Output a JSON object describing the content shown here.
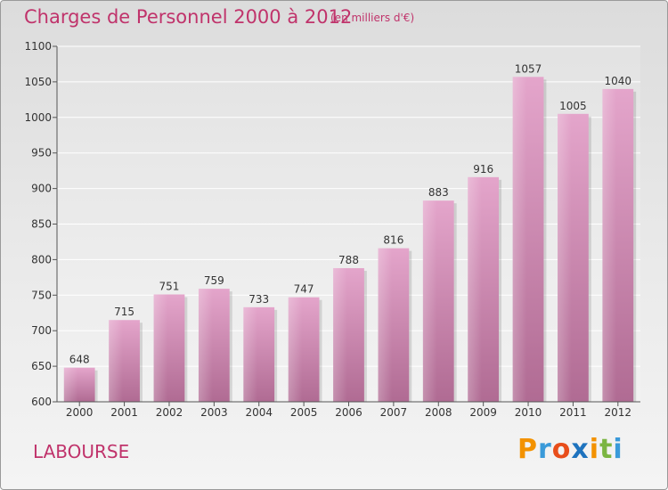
{
  "header": {
    "title": "Charges de Personnel 2000 à 2012",
    "subtitle": "(en milliers d'€)"
  },
  "footer": {
    "commune": "LABOURSE",
    "brand_letters": [
      "P",
      "r",
      "o",
      "x",
      "i",
      "t",
      "i"
    ],
    "brand_colors": [
      "#f39200",
      "#3a9ad9",
      "#e84e1b",
      "#1e73be",
      "#f39200",
      "#7bb542",
      "#3a9ad9"
    ]
  },
  "chart_data": {
    "type": "bar",
    "title": "Charges de Personnel 2000 à 2012",
    "subtitle": "(en milliers d'€)",
    "categories": [
      "2000",
      "2001",
      "2002",
      "2003",
      "2004",
      "2005",
      "2006",
      "2007",
      "2008",
      "2009",
      "2010",
      "2011",
      "2012"
    ],
    "values": [
      648,
      715,
      751,
      759,
      733,
      747,
      788,
      816,
      883,
      916,
      1057,
      1005,
      1040
    ],
    "ylim": [
      600,
      1100
    ],
    "yticks": [
      600,
      650,
      700,
      750,
      800,
      850,
      900,
      950,
      1000,
      1050,
      1100
    ],
    "grid": true,
    "bar_color": "#cc7aa7",
    "xlabel": "",
    "ylabel": ""
  }
}
